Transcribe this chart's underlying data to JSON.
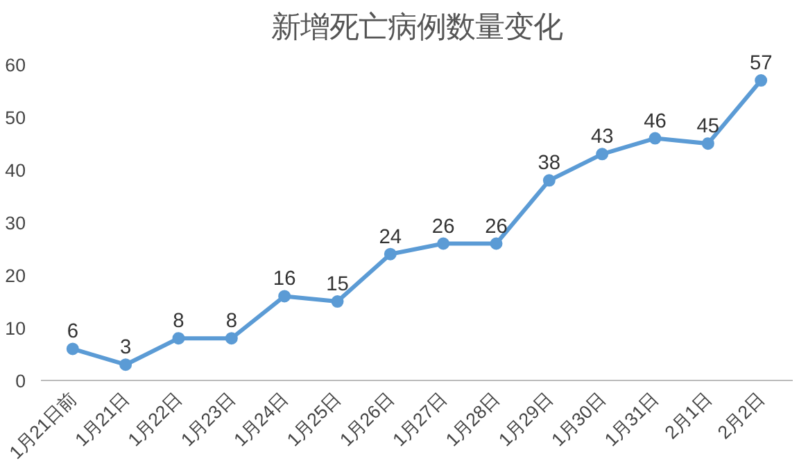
{
  "chart_data": {
    "type": "line",
    "title": "新增死亡病例数量变化",
    "categories": [
      "1月21日前",
      "1月21日",
      "1月22日",
      "1月23日",
      "1月24日",
      "1月25日",
      "1月26日",
      "1月27日",
      "1月28日",
      "1月29日",
      "1月30日",
      "1月31日",
      "2月1日",
      "2月2日"
    ],
    "series": [
      {
        "color": "#5b9bd5",
        "values": [
          6,
          3,
          8,
          8,
          16,
          15,
          24,
          26,
          26,
          38,
          43,
          46,
          45,
          57
        ]
      }
    ],
    "ylim": [
      0,
      60
    ],
    "yticks": [
      0,
      10,
      20,
      30,
      40,
      50,
      60
    ],
    "data_labels": true,
    "marker": "circle",
    "line_style": "solid"
  }
}
